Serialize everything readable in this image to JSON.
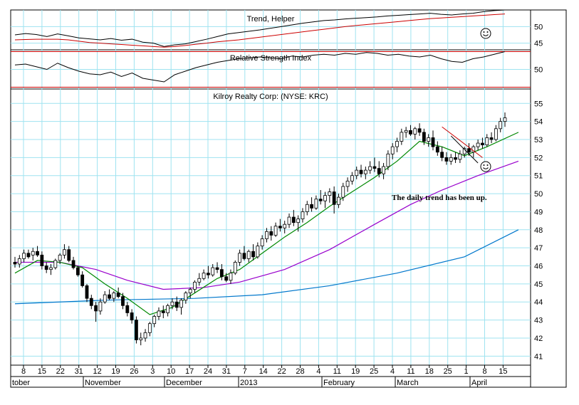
{
  "chart_data": [
    {
      "type": "line",
      "title": "Trend, Helper",
      "y_ticks": [
        "50",
        "45"
      ],
      "ylim": [
        43,
        55
      ],
      "series": [
        {
          "color": "#000000",
          "values": [
            47.5,
            47.9,
            47.6,
            47.0,
            47.8,
            47.2,
            46.6,
            46.3,
            46.0,
            46.4,
            45.9,
            46.2,
            45.3,
            45.0,
            44.0,
            44.5,
            44.8,
            45.5,
            46.2,
            47.0,
            47.8,
            48.2,
            48.6,
            49.0,
            49.5,
            50.0,
            50.5,
            51.0,
            51.4,
            51.8,
            52.0,
            52.3,
            52.5,
            52.7,
            52.9,
            53.2,
            53.4,
            53.6,
            53.8,
            54.0,
            53.7,
            53.5,
            53.8,
            54.0,
            54.5,
            54.8,
            55.0
          ]
        },
        {
          "color": "#cc0000",
          "values": [
            46.0,
            46.1,
            46.2,
            46.2,
            46.2,
            46.0,
            45.6,
            45.2,
            45.0,
            44.8,
            44.6,
            44.4,
            44.2,
            44.0,
            43.8,
            44.0,
            44.3,
            44.7,
            45.0,
            45.4,
            45.7,
            46.0,
            46.4,
            46.8,
            47.2,
            47.6,
            48.0,
            48.4,
            48.8,
            49.2,
            49.6,
            50.0,
            50.3,
            50.6,
            50.9,
            51.2,
            51.5,
            51.8,
            52.1,
            52.4,
            52.6,
            52.8,
            53.0,
            53.2,
            53.4,
            53.6,
            53.8
          ]
        }
      ],
      "indicator": "smiley"
    },
    {
      "type": "line",
      "title": "Relative Strength Index",
      "y_ticks": [
        "50"
      ],
      "ylim": [
        28,
        72
      ],
      "reference_lines": [
        70,
        30
      ],
      "series": [
        {
          "color": "#000000",
          "values": [
            55,
            56,
            53,
            50,
            57,
            52,
            48,
            45,
            44,
            47,
            42,
            46,
            40,
            38,
            36,
            44,
            48,
            52,
            55,
            58,
            60,
            62,
            63,
            64,
            63,
            62,
            65,
            64,
            66,
            67,
            66,
            68,
            67,
            69,
            68,
            66,
            67,
            65,
            64,
            66,
            62,
            59,
            58,
            62,
            64,
            67,
            70
          ]
        }
      ]
    },
    {
      "type": "candlestick",
      "title": "Kilroy Realty Corp: (NYSE: KRC)",
      "ylim": [
        40.5,
        55.8
      ],
      "y_ticks": [
        41,
        42,
        43,
        44,
        45,
        46,
        47,
        48,
        49,
        50,
        51,
        52,
        53,
        54,
        55
      ],
      "x_ticks": [
        "8",
        "15",
        "22",
        "31",
        "12",
        "19",
        "26",
        "3",
        "10",
        "17",
        "24",
        "31",
        "7",
        "14",
        "22",
        "28",
        "4",
        "11",
        "19",
        "25",
        "4",
        "11",
        "18",
        "25",
        "1",
        "8",
        "15"
      ],
      "month_labels": [
        "tober",
        "November",
        "December",
        "2013",
        "February",
        "March",
        "April"
      ],
      "annotation": "The daily trend has been up.",
      "indicator": "smiley",
      "candles": [
        [
          46.2,
          46.5,
          45.9,
          46.1
        ],
        [
          46.1,
          46.6,
          45.9,
          46.4
        ],
        [
          46.4,
          46.9,
          46.2,
          46.7
        ],
        [
          46.7,
          46.9,
          46.4,
          46.5
        ],
        [
          46.6,
          47.0,
          46.3,
          46.8
        ],
        [
          46.8,
          47.1,
          46.5,
          46.6
        ],
        [
          46.6,
          46.8,
          45.8,
          46.0
        ],
        [
          46.0,
          46.2,
          45.6,
          45.8
        ],
        [
          45.8,
          46.1,
          45.5,
          45.9
        ],
        [
          45.9,
          46.4,
          45.8,
          46.3
        ],
        [
          46.3,
          46.7,
          46.1,
          46.6
        ],
        [
          46.6,
          47.2,
          46.4,
          46.9
        ],
        [
          46.9,
          47.1,
          46.2,
          46.3
        ],
        [
          46.3,
          46.5,
          45.8,
          45.9
        ],
        [
          45.9,
          46.0,
          45.4,
          45.5
        ],
        [
          45.5,
          45.7,
          44.8,
          44.9
        ],
        [
          44.9,
          45.0,
          44.0,
          44.2
        ],
        [
          44.2,
          44.4,
          43.6,
          43.8
        ],
        [
          43.8,
          44.0,
          42.9,
          43.5
        ],
        [
          43.5,
          44.2,
          43.3,
          44.0
        ],
        [
          44.0,
          44.6,
          43.9,
          44.4
        ],
        [
          44.4,
          44.7,
          44.1,
          44.2
        ],
        [
          44.2,
          44.6,
          44.0,
          44.5
        ],
        [
          44.5,
          44.8,
          44.2,
          44.3
        ],
        [
          44.3,
          44.5,
          43.6,
          43.8
        ],
        [
          43.8,
          44.0,
          43.2,
          43.4
        ],
        [
          43.4,
          43.6,
          42.8,
          43.0
        ],
        [
          43.0,
          43.2,
          41.7,
          41.9
        ],
        [
          41.9,
          42.3,
          41.6,
          42.0
        ],
        [
          42.0,
          42.5,
          41.8,
          42.3
        ],
        [
          42.3,
          42.9,
          42.1,
          42.8
        ],
        [
          42.8,
          43.3,
          42.6,
          43.2
        ],
        [
          43.2,
          43.7,
          43.0,
          43.5
        ],
        [
          43.5,
          43.8,
          43.1,
          43.4
        ],
        [
          43.4,
          43.9,
          43.2,
          43.8
        ],
        [
          43.8,
          44.2,
          43.6,
          44.0
        ],
        [
          44.0,
          44.3,
          43.5,
          43.7
        ],
        [
          43.7,
          44.2,
          43.3,
          44.1
        ],
        [
          44.1,
          44.6,
          43.9,
          44.5
        ],
        [
          44.5,
          44.8,
          44.2,
          44.7
        ],
        [
          44.7,
          45.2,
          44.5,
          45.1
        ],
        [
          45.1,
          45.6,
          44.9,
          45.3
        ],
        [
          45.3,
          45.8,
          45.2,
          45.6
        ],
        [
          45.6,
          46.0,
          45.3,
          45.5
        ],
        [
          45.5,
          46.1,
          45.4,
          45.9
        ],
        [
          45.9,
          46.2,
          45.6,
          45.8
        ],
        [
          45.8,
          46.1,
          45.2,
          45.4
        ],
        [
          45.4,
          45.6,
          45.1,
          45.2
        ],
        [
          45.2,
          45.8,
          45.0,
          45.6
        ],
        [
          45.6,
          46.3,
          45.5,
          46.2
        ],
        [
          46.2,
          46.9,
          46.0,
          46.7
        ],
        [
          46.7,
          47.1,
          46.3,
          46.4
        ],
        [
          46.4,
          46.9,
          46.2,
          46.8
        ],
        [
          46.8,
          47.2,
          46.3,
          46.5
        ],
        [
          46.5,
          47.3,
          46.4,
          47.1
        ],
        [
          47.1,
          47.7,
          46.9,
          47.5
        ],
        [
          47.5,
          48.1,
          47.3,
          47.9
        ],
        [
          47.9,
          48.2,
          47.4,
          47.7
        ],
        [
          47.7,
          48.4,
          47.6,
          48.2
        ],
        [
          48.2,
          48.6,
          47.9,
          48.1
        ],
        [
          48.1,
          48.5,
          47.8,
          48.3
        ],
        [
          48.3,
          48.9,
          48.1,
          48.7
        ],
        [
          48.7,
          49.1,
          48.2,
          48.4
        ],
        [
          48.4,
          48.8,
          47.9,
          48.6
        ],
        [
          48.6,
          49.2,
          48.4,
          49.0
        ],
        [
          49.0,
          49.6,
          48.8,
          49.4
        ],
        [
          49.4,
          49.8,
          49.0,
          49.2
        ],
        [
          49.2,
          49.9,
          49.1,
          49.7
        ],
        [
          49.7,
          50.2,
          49.4,
          49.6
        ],
        [
          49.6,
          50.1,
          49.2,
          49.9
        ],
        [
          49.9,
          50.3,
          49.5,
          50.1
        ],
        [
          50.1,
          50.4,
          48.9,
          49.4
        ],
        [
          49.4,
          50.0,
          49.2,
          49.8
        ],
        [
          49.8,
          50.6,
          49.6,
          50.4
        ],
        [
          50.4,
          50.9,
          50.1,
          50.7
        ],
        [
          50.7,
          51.2,
          50.5,
          51.0
        ],
        [
          51.0,
          51.5,
          50.8,
          51.3
        ],
        [
          51.3,
          51.6,
          50.9,
          51.1
        ],
        [
          51.1,
          51.5,
          50.8,
          51.3
        ],
        [
          51.3,
          51.8,
          51.1,
          51.5
        ],
        [
          51.5,
          52.0,
          51.2,
          51.4
        ],
        [
          51.4,
          51.8,
          50.9,
          51.1
        ],
        [
          51.1,
          51.7,
          50.8,
          51.5
        ],
        [
          51.5,
          52.4,
          51.3,
          52.2
        ],
        [
          52.2,
          52.8,
          51.9,
          52.6
        ],
        [
          52.6,
          53.1,
          52.3,
          52.9
        ],
        [
          52.9,
          53.6,
          52.7,
          53.4
        ],
        [
          53.4,
          53.7,
          53.1,
          53.5
        ],
        [
          53.5,
          53.8,
          53.2,
          53.3
        ],
        [
          53.3,
          53.7,
          53.0,
          53.6
        ],
        [
          53.6,
          53.9,
          53.2,
          53.4
        ],
        [
          53.4,
          53.6,
          52.7,
          52.9
        ],
        [
          52.9,
          53.3,
          52.6,
          53.1
        ],
        [
          53.1,
          53.5,
          52.4,
          52.6
        ],
        [
          52.6,
          52.9,
          52.1,
          52.3
        ],
        [
          52.3,
          52.6,
          51.8,
          52.0
        ],
        [
          52.0,
          52.3,
          51.6,
          51.8
        ],
        [
          51.8,
          52.2,
          51.6,
          52.0
        ],
        [
          52.0,
          52.3,
          51.7,
          51.9
        ],
        [
          51.9,
          52.4,
          51.7,
          52.2
        ],
        [
          52.2,
          52.6,
          52.0,
          52.5
        ],
        [
          52.5,
          52.8,
          52.1,
          52.3
        ],
        [
          52.3,
          52.7,
          52.0,
          52.6
        ],
        [
          52.6,
          53.0,
          52.4,
          52.8
        ],
        [
          52.8,
          53.1,
          52.5,
          52.7
        ],
        [
          52.7,
          53.3,
          52.6,
          53.1
        ],
        [
          53.1,
          53.4,
          52.8,
          53.0
        ],
        [
          53.0,
          53.8,
          52.9,
          53.6
        ],
        [
          53.6,
          54.2,
          53.4,
          54.0
        ],
        [
          54.0,
          54.5,
          53.7,
          54.2
        ]
      ],
      "sma_fast_color": "#008800",
      "sma_mid_color": "#9900cc",
      "sma_slow_color": "#0077cc",
      "sma_fast": [
        [
          0,
          45.6
        ],
        [
          5,
          46.3
        ],
        [
          10,
          46.2
        ],
        [
          15,
          45.9
        ],
        [
          20,
          45.0
        ],
        [
          25,
          44.2
        ],
        [
          30,
          43.3
        ],
        [
          35,
          43.7
        ],
        [
          40,
          44.5
        ],
        [
          45,
          45.3
        ],
        [
          50,
          45.8
        ],
        [
          55,
          46.7
        ],
        [
          60,
          47.6
        ],
        [
          65,
          48.4
        ],
        [
          70,
          49.3
        ],
        [
          75,
          50.1
        ],
        [
          80,
          50.9
        ],
        [
          85,
          51.8
        ],
        [
          90,
          52.9
        ],
        [
          95,
          52.6
        ],
        [
          100,
          52.1
        ],
        [
          105,
          52.6
        ],
        [
          112,
          53.4
        ]
      ],
      "sma_mid": [
        [
          0,
          46.2
        ],
        [
          10,
          46.2
        ],
        [
          18,
          45.8
        ],
        [
          25,
          45.2
        ],
        [
          33,
          44.7
        ],
        [
          42,
          44.8
        ],
        [
          50,
          45.1
        ],
        [
          60,
          45.8
        ],
        [
          70,
          46.9
        ],
        [
          80,
          48.3
        ],
        [
          88,
          49.4
        ],
        [
          95,
          50.2
        ],
        [
          103,
          51.0
        ],
        [
          112,
          51.8
        ]
      ],
      "sma_slow": [
        [
          0,
          43.9
        ],
        [
          20,
          44.1
        ],
        [
          40,
          44.2
        ],
        [
          55,
          44.4
        ],
        [
          70,
          44.9
        ],
        [
          85,
          45.6
        ],
        [
          100,
          46.5
        ],
        [
          112,
          48.0
        ]
      ]
    }
  ]
}
